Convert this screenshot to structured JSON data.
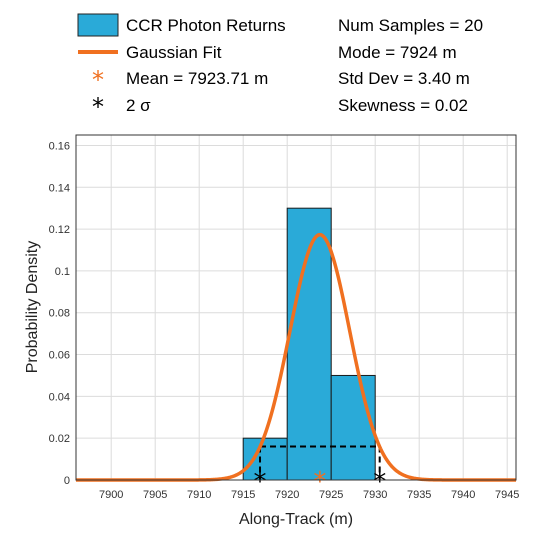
{
  "chart_data": {
    "type": "bar",
    "xlabel": "Along-Track (m)",
    "ylabel": "Probability Density",
    "xlim": [
      7896,
      7946
    ],
    "ylim": [
      0,
      0.165
    ],
    "xticks": [
      7900,
      7905,
      7910,
      7915,
      7920,
      7925,
      7930,
      7935,
      7940,
      7945
    ],
    "yticks": [
      0,
      0.02,
      0.04,
      0.06,
      0.08,
      0.1,
      0.12,
      0.14,
      0.16
    ],
    "xtick_labels": [
      "7900",
      "7905",
      "7910",
      "7915",
      "7920",
      "7925",
      "7930",
      "7935",
      "7940",
      "7945"
    ],
    "ytick_labels": [
      "0",
      "0.02",
      "0.04",
      "0.06",
      "0.08",
      "0.1",
      "0.12",
      "0.14",
      "0.16"
    ],
    "grid": true,
    "legend_position": "top",
    "histogram": {
      "name": "CCR Photon Returns",
      "bin_edges": [
        7915,
        7920,
        7925,
        7930
      ],
      "values": [
        0.02,
        0.13,
        0.05
      ],
      "color": "#2aaad8"
    },
    "gaussian_fit": {
      "name": "Gaussian Fit",
      "mean": 7923.71,
      "std": 3.4,
      "color": "#f07020"
    },
    "mean_marker": {
      "label": "Mean = 7923.71 m",
      "x": 7923.71,
      "y": 0,
      "color": "#f07020"
    },
    "sigma_markers": {
      "label": "2 σ",
      "x": [
        7916.91,
        7930.51
      ],
      "y": 0,
      "level": 0.016,
      "color": "#000000"
    },
    "stats": {
      "num_samples": "Num Samples = 20",
      "mode": "Mode = 7924 m",
      "std_dev": "Std Dev = 3.40 m",
      "skewness": "Skewness = 0.02"
    }
  }
}
